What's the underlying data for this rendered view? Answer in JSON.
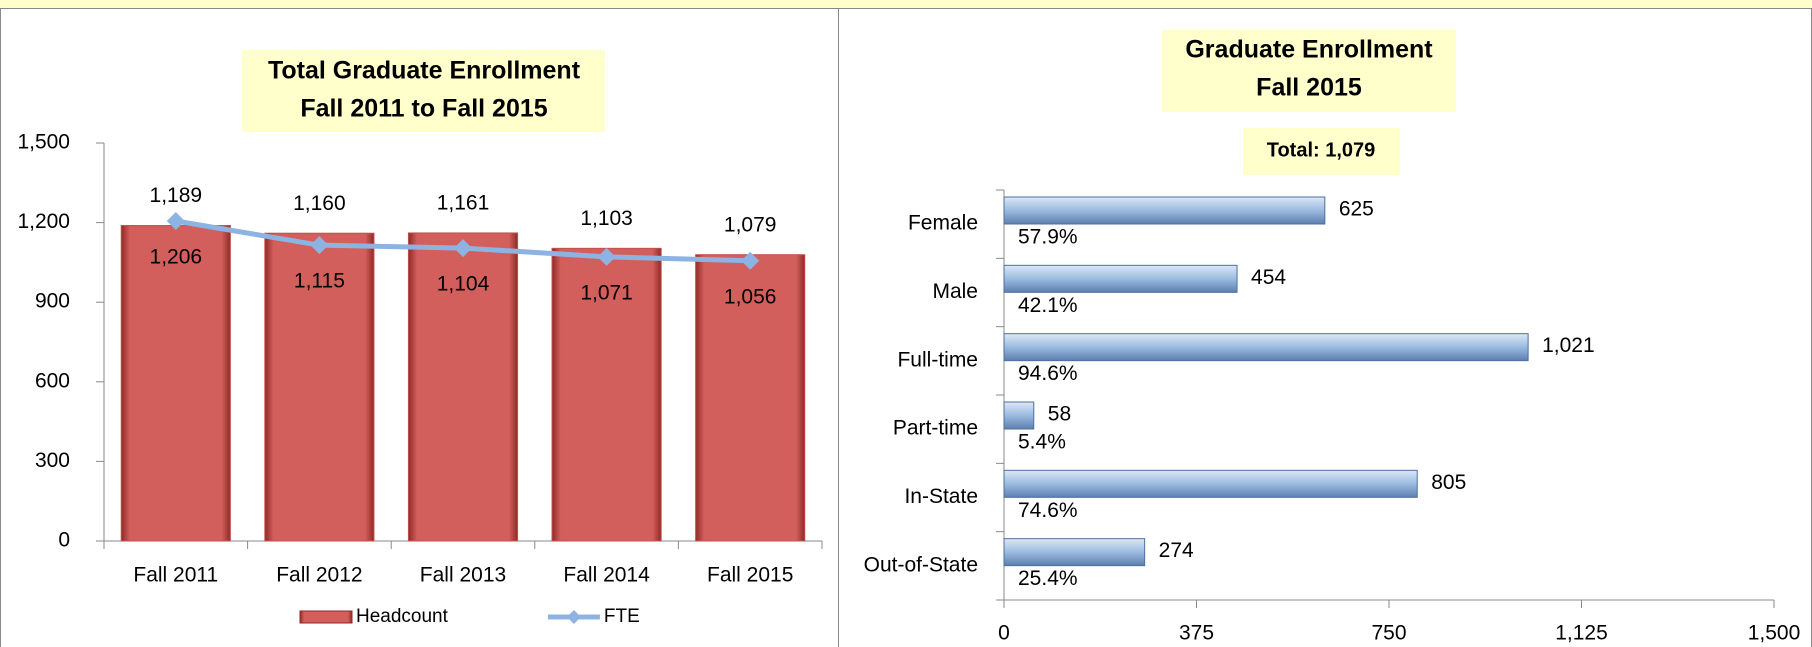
{
  "chart_data": [
    {
      "type": "bar",
      "title": [
        "Total Graduate Enrollment",
        "Fall 2011 to Fall 2015"
      ],
      "categories": [
        "Fall 2011",
        "Fall 2012",
        "Fall 2013",
        "Fall 2014",
        "Fall 2015"
      ],
      "series": [
        {
          "name": "Headcount",
          "color": "#c0504d",
          "kind": "bar",
          "values": [
            1189,
            1160,
            1161,
            1103,
            1079
          ],
          "value_labels": [
            "1,189",
            "1,160",
            "1,161",
            "1,103",
            "1,079"
          ]
        },
        {
          "name": "FTE",
          "color": "#8db3e2",
          "kind": "line",
          "values": [
            1206,
            1115,
            1104,
            1071,
            1056
          ],
          "value_labels": [
            "1,206",
            "1,115",
            "1,104",
            "1,071",
            "1,056"
          ]
        }
      ],
      "ylim": [
        0,
        1500
      ],
      "yticks": [
        0,
        300,
        600,
        900,
        {
          "value": 1200,
          "label": "1,200"
        },
        {
          "value": 1500,
          "label": "1,500"
        }
      ],
      "legend": "bottom"
    },
    {
      "type": "hbar",
      "title": [
        "Graduate Enrollment",
        "Fall 2015"
      ],
      "subtitle": "Total: 1,079",
      "categories": [
        "Female",
        "Male",
        "Full-time",
        "Part-time",
        "In-State",
        "Out-of-State"
      ],
      "values": [
        625,
        454,
        1021,
        58,
        805,
        274
      ],
      "value_labels": [
        "625",
        "454",
        "1,021",
        "58",
        "805",
        "274"
      ],
      "percent_labels": [
        "57.9%",
        "42.1%",
        "94.6%",
        "5.4%",
        "74.6%",
        "25.4%"
      ],
      "color": "#95b3d7",
      "xlim": [
        0,
        1500
      ],
      "xticks": [
        0,
        375,
        750,
        {
          "value": 1125,
          "label": "1,125"
        },
        {
          "value": 1500,
          "label": "1,500"
        }
      ]
    }
  ]
}
